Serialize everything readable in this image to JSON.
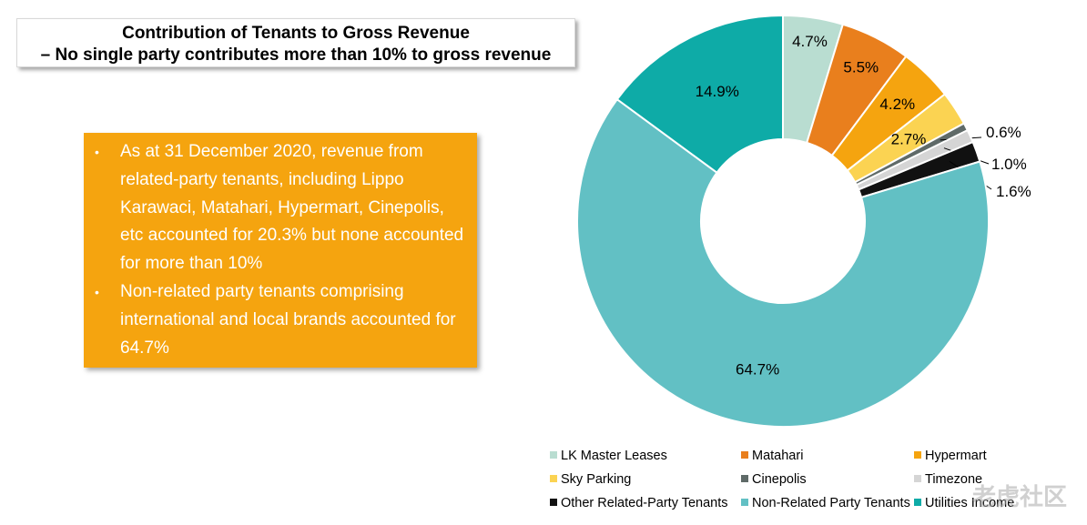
{
  "header": {
    "title_line1": "Contribution of Tenants to Gross Revenue",
    "title_line2": "– No single party contributes more than 10% to gross revenue"
  },
  "info": {
    "bullet_char": "•",
    "bullets": [
      "As at 31 December 2020, revenue from related-party tenants, including Lippo Karawaci, Matahari, Hypermart, Cinepolis, etc accounted for 20.3% but none accounted for more than 10%",
      "Non-related party tenants comprising international and local brands accounted for 64.7%"
    ]
  },
  "chart_data": {
    "type": "pie",
    "donut": true,
    "series": [
      {
        "name": "LK Master Leases",
        "value": 4.7,
        "label": "4.7%",
        "color": "#b9ddd1"
      },
      {
        "name": "Matahari",
        "value": 5.5,
        "label": "5.5%",
        "color": "#e97f1d"
      },
      {
        "name": "Hypermart",
        "value": 4.2,
        "label": "4.2%",
        "color": "#f5a40f"
      },
      {
        "name": "Sky Parking",
        "value": 2.7,
        "label": "2.7%",
        "color": "#fbd352"
      },
      {
        "name": "Cinepolis",
        "value": 0.6,
        "label": "0.6%",
        "color": "#5f6a68"
      },
      {
        "name": "Timezone",
        "value": 1.0,
        "label": "1.0%",
        "color": "#d5d5d5"
      },
      {
        "name": "Other Related-Party Tenants",
        "value": 1.6,
        "label": "1.6%",
        "color": "#111111"
      },
      {
        "name": "Non-Related Party Tenants",
        "value": 64.7,
        "label": "64.7%",
        "color": "#62c0c4"
      },
      {
        "name": "Utilities Income",
        "value": 14.9,
        "label": "14.9%",
        "color": "#0eaba7"
      }
    ],
    "legend": [
      "LK Master Leases",
      "Matahari",
      "Hypermart",
      "Sky Parking",
      "Cinepolis",
      "Timezone",
      "Other Related-Party Tenants",
      "Non-Related Party Tenants",
      "Utilities Income"
    ],
    "legend_position": "bottom"
  },
  "watermark": {
    "text": "老虎社区"
  }
}
